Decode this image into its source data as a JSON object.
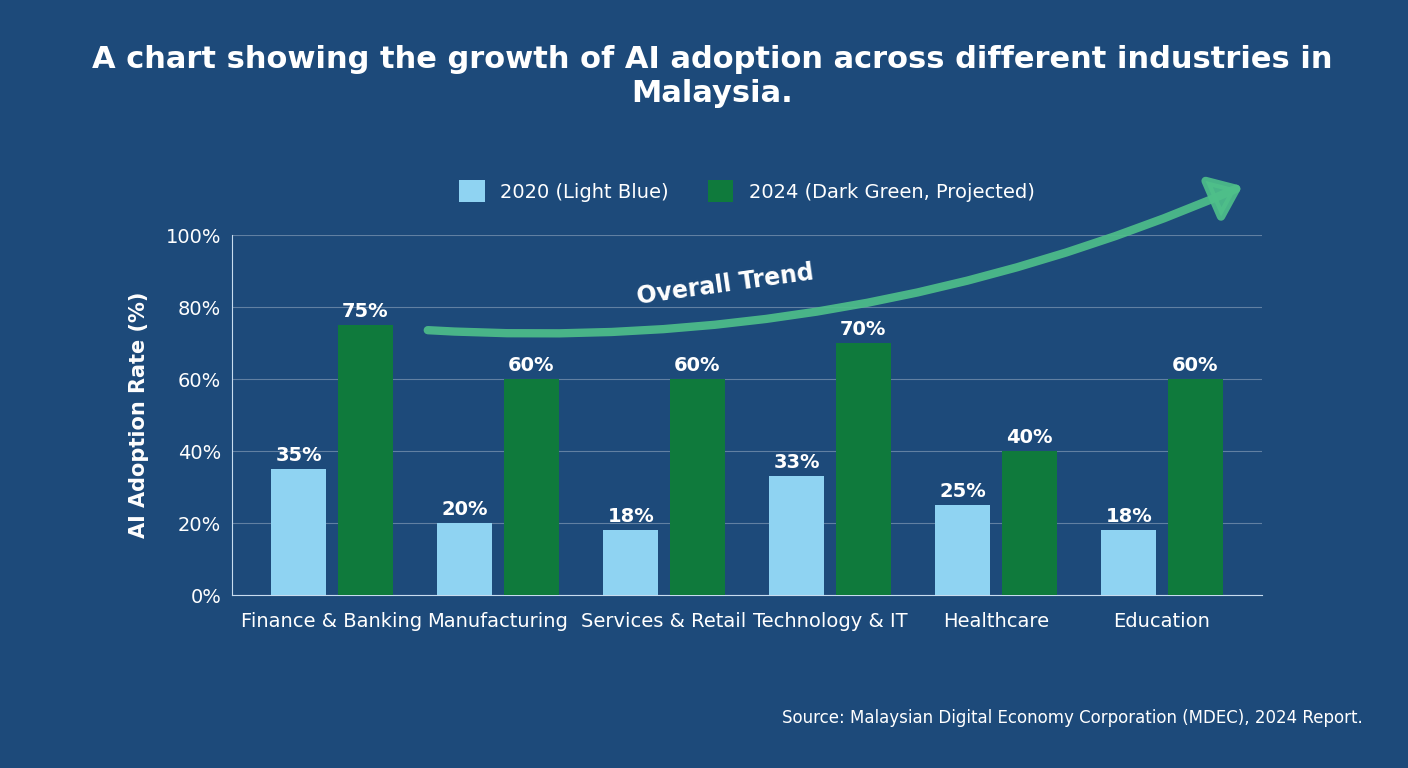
{
  "chart_data": {
    "type": "bar",
    "title": "A chart showing the growth of AI adoption across different industries in Malaysia.",
    "y_label": "AI Adoption Rate (%)",
    "categories": [
      "Finance & Banking",
      "Manufacturing",
      "Services & Retail",
      "Technology & IT",
      "Healthcare",
      "Education"
    ],
    "series": [
      {
        "name": "2020 (Light Blue)",
        "color": "#8fd3f2",
        "values": [
          35,
          20,
          18,
          33,
          25,
          18
        ],
        "value_labels": [
          "35%",
          "20%",
          "18%",
          "33%",
          "25%",
          "18%"
        ]
      },
      {
        "name": "2024 (Dark Green, Projected)",
        "color": "#0f7a3c",
        "values": [
          75,
          60,
          60,
          70,
          40,
          60
        ],
        "value_labels": [
          "75%",
          "60%",
          "60%",
          "70%",
          "40%",
          "60%"
        ]
      }
    ],
    "ylim": [
      0,
      100
    ],
    "yticks": [
      {
        "value": 0,
        "label": "0%"
      },
      {
        "value": 20,
        "label": "20%"
      },
      {
        "value": 40,
        "label": "40%"
      },
      {
        "value": 60,
        "label": "60%"
      },
      {
        "value": 80,
        "label": "80%"
      },
      {
        "value": 100,
        "label": "100%"
      }
    ],
    "grid": true,
    "legend": "upper center",
    "data_labels": true,
    "annotations": [
      "Overall Trend"
    ],
    "source": "Source: Malaysian Digital Economy Corporation (MDEC), 2024 Report."
  }
}
